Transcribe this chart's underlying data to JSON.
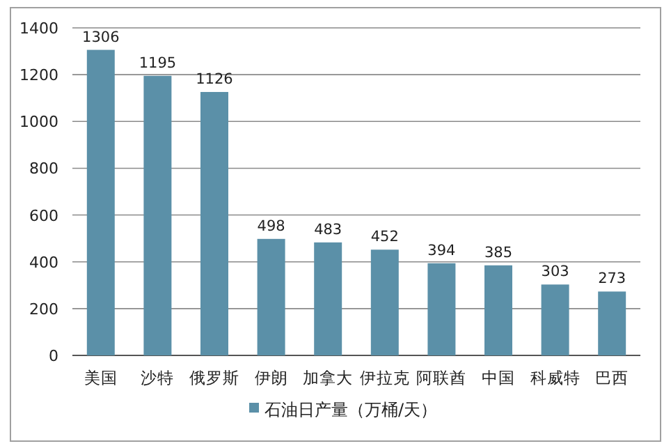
{
  "chart_data": {
    "type": "bar",
    "categories": [
      "美国",
      "沙特",
      "俄罗斯",
      "伊朗",
      "加拿大",
      "伊拉克",
      "阿联酋",
      "中国",
      "科威特",
      "巴西"
    ],
    "series": [
      {
        "name": "石油日产量（万桶/天）",
        "color": "#5b90a8",
        "values": [
          1306,
          1195,
          1126,
          498,
          483,
          452,
          394,
          385,
          303,
          273
        ]
      }
    ],
    "ylim": [
      0,
      1400
    ],
    "yticks": [
      0,
      200,
      400,
      600,
      800,
      1000,
      1200,
      1400
    ],
    "grid": "y",
    "data_labels": true,
    "legend": "bottom"
  }
}
